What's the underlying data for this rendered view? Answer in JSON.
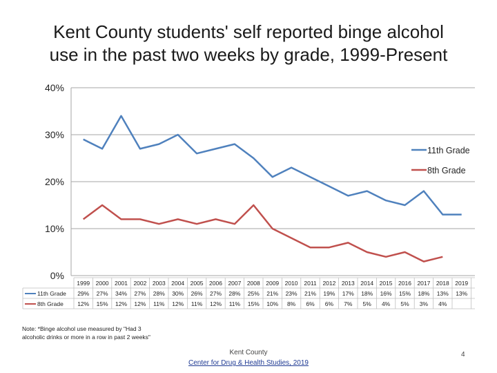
{
  "title": {
    "line1": "Kent County students' self reported binge alcohol",
    "line2": "use in the past two weeks by grade, 1999-Present"
  },
  "note": "Note: *Binge alcohol use measured by \"Had 3 alcoholic drinks or more in a row in past 2 weeks\"",
  "footer": {
    "org": "Kent County",
    "link": "Center for Drug & Health Studies, 2019"
  },
  "page_number": "4",
  "colors": {
    "series_11th": "#4f81bd",
    "series_8th": "#c0504d",
    "axis": "#a6a6a6"
  },
  "chart_data": {
    "type": "line",
    "title": "Kent County students' self reported binge alcohol use in the past two weeks by grade, 1999-Present",
    "xlabel": "",
    "ylabel": "",
    "ylim": [
      0,
      40
    ],
    "yticks": [
      "0%",
      "10%",
      "20%",
      "30%",
      "40%"
    ],
    "grid": true,
    "legend_position": "right",
    "categories": [
      "1999",
      "2000",
      "2001",
      "2002",
      "2003",
      "2004",
      "2005",
      "2006",
      "2007",
      "2008",
      "2009",
      "2010",
      "2011",
      "2012",
      "2013",
      "2014",
      "2015",
      "2016",
      "2017",
      "2018",
      "2019"
    ],
    "series": [
      {
        "name": "11th Grade",
        "values": [
          29,
          27,
          34,
          27,
          28,
          30,
          26,
          27,
          28,
          25,
          21,
          23,
          21,
          19,
          17,
          18,
          16,
          15,
          18,
          13,
          13
        ],
        "labels": [
          "29%",
          "27%",
          "34%",
          "27%",
          "28%",
          "30%",
          "26%",
          "27%",
          "28%",
          "25%",
          "21%",
          "23%",
          "21%",
          "19%",
          "17%",
          "18%",
          "16%",
          "15%",
          "18%",
          "13%",
          "13%"
        ]
      },
      {
        "name": "8th Grade",
        "values": [
          12,
          15,
          12,
          12,
          11,
          12,
          11,
          12,
          11,
          15,
          10,
          8,
          6,
          6,
          7,
          5,
          4,
          5,
          3,
          4,
          null
        ],
        "labels": [
          "12%",
          "15%",
          "12%",
          "12%",
          "11%",
          "12%",
          "11%",
          "12%",
          "11%",
          "15%",
          "10%",
          "8%",
          "6%",
          "6%",
          "7%",
          "5%",
          "4%",
          "5%",
          "3%",
          "4%",
          ""
        ]
      }
    ]
  }
}
